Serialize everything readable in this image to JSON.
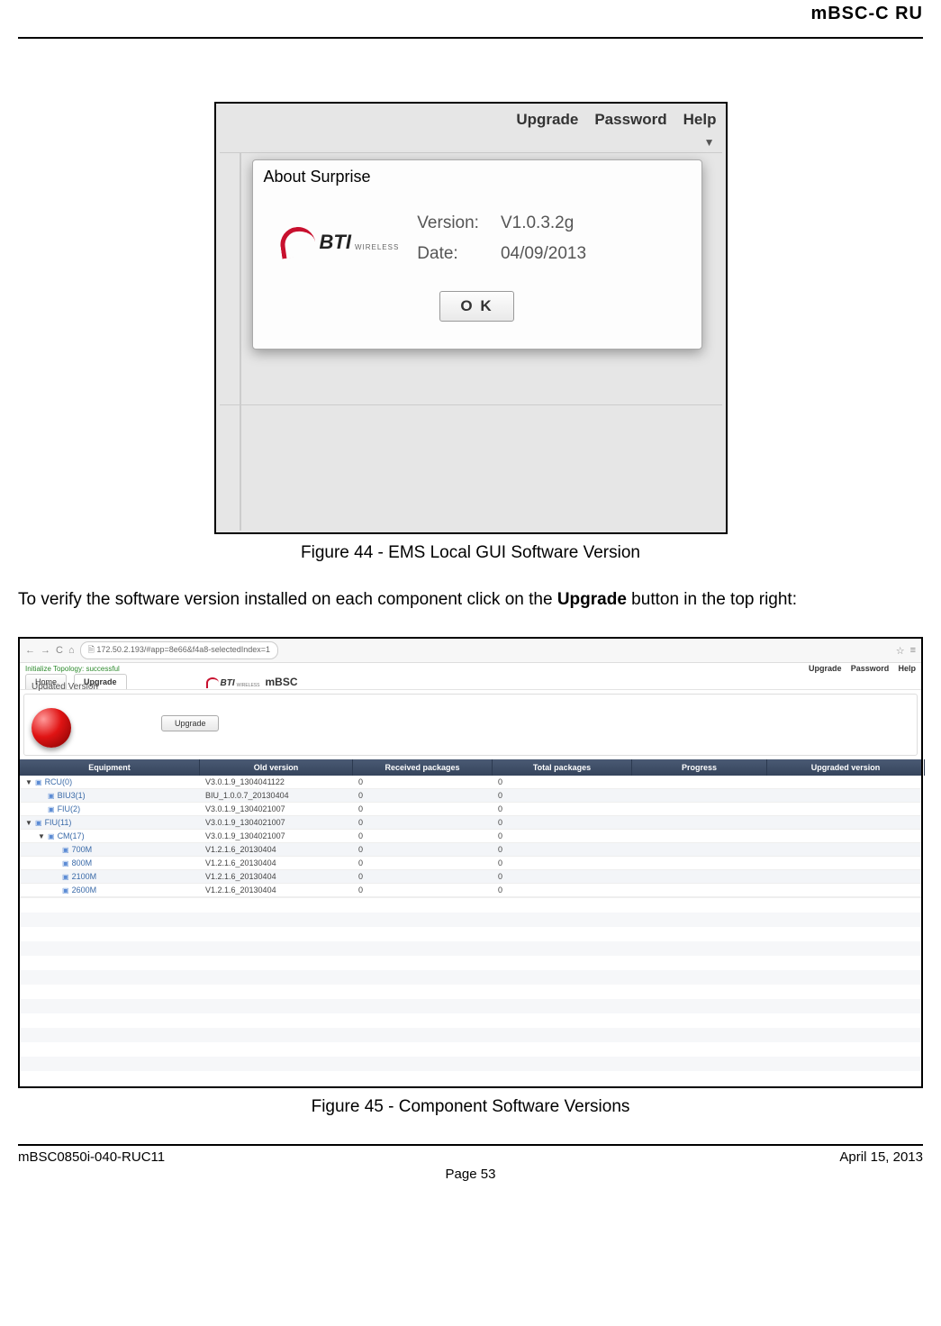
{
  "headerRight": "mBSC-C   RU",
  "fig1": {
    "menu": {
      "upgrade": "Upgrade",
      "password": "Password",
      "help": "Help"
    },
    "arrow": "▼",
    "dialog": {
      "title": "About Surprise",
      "logo": {
        "main": "BTI",
        "sub": "WIRELESS"
      },
      "versionLabel": "Version:",
      "versionValue": "V1.0.3.2g",
      "dateLabel": "Date:",
      "dateValue": "04/09/2013",
      "ok": "O K"
    },
    "caption": "Figure 44 - EMS Local GUI Software Version"
  },
  "bodyText": "To verify the software version installed on each component click on the Upgrade button in the top right:",
  "bodyBold": "Upgrade",
  "fig2": {
    "urlArrows": [
      "←",
      "→"
    ],
    "urlReload": "C",
    "urlHome": "⌂",
    "urlDoc": "🗎",
    "url": "172.50.2.193/#app=8e66&f4a8-selectedIndex=1",
    "star": "☆",
    "menuIcon": "≡",
    "statusLeft": "Initialize Topology: successful",
    "statusRight": {
      "upgrade": "Upgrade",
      "password": "Password",
      "help": "Help"
    },
    "tabs": {
      "home": "Home",
      "upgrade": "Upgrade"
    },
    "logo": {
      "main": "BTI",
      "sub": "WIRELESS",
      "mbsc": "mBSC"
    },
    "updatedVersion": "Updated Version",
    "upgradeBtn": "Upgrade",
    "headers": [
      "Equipment",
      "Old version",
      "Received packages",
      "Total packages",
      "Progress",
      "Upgraded version"
    ],
    "rows": [
      {
        "indent": 0,
        "toggle": "▼",
        "name": "RCU(0)",
        "old": "V3.0.1.9_1304041122",
        "recv": "0",
        "total": "0",
        "alt": false
      },
      {
        "indent": 1,
        "toggle": "",
        "name": "BIU3(1)",
        "old": "BIU_1.0.0.7_20130404",
        "recv": "0",
        "total": "0",
        "alt": true
      },
      {
        "indent": 1,
        "toggle": "",
        "name": "FIU(2)",
        "old": "V3.0.1.9_1304021007",
        "recv": "0",
        "total": "0",
        "alt": false
      },
      {
        "indent": 0,
        "toggle": "▼",
        "name": "FIU(11)",
        "old": "V3.0.1.9_1304021007",
        "recv": "0",
        "total": "0",
        "alt": true
      },
      {
        "indent": 1,
        "toggle": "▼",
        "name": "CM(17)",
        "old": "V3.0.1.9_1304021007",
        "recv": "0",
        "total": "0",
        "alt": false
      },
      {
        "indent": 2,
        "toggle": "",
        "name": "700M",
        "old": "V1.2.1.6_20130404",
        "recv": "0",
        "total": "0",
        "alt": true
      },
      {
        "indent": 2,
        "toggle": "",
        "name": "800M",
        "old": "V1.2.1.6_20130404",
        "recv": "0",
        "total": "0",
        "alt": false
      },
      {
        "indent": 2,
        "toggle": "",
        "name": "2100M",
        "old": "V1.2.1.6_20130404",
        "recv": "0",
        "total": "0",
        "alt": true
      },
      {
        "indent": 2,
        "toggle": "",
        "name": "2600M",
        "old": "V1.2.1.6_20130404",
        "recv": "0",
        "total": "0",
        "alt": false
      }
    ],
    "caption": "Figure 45 - Component Software Versions"
  },
  "footer": {
    "left": "mBSC0850i-040-RUC11",
    "right": "April 15, 2013",
    "center": "Page 53"
  },
  "colors": {
    "headerGradStart": "#4a5a74",
    "headerGradEnd": "#35445c",
    "red": "#c8102e"
  }
}
